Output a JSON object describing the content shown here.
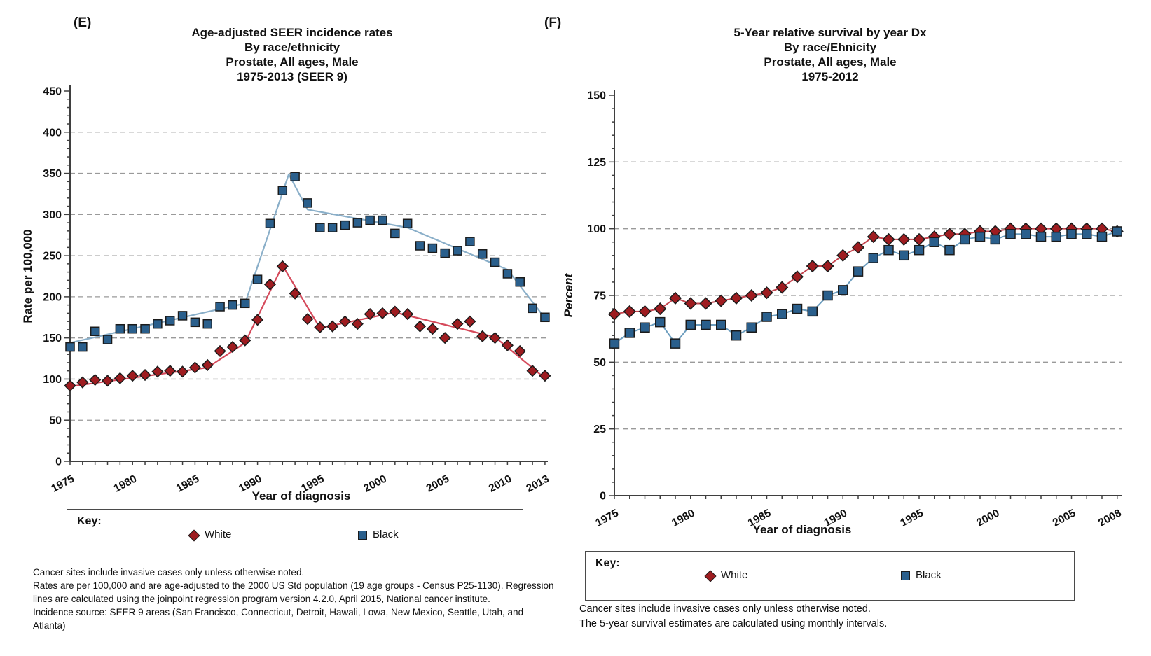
{
  "panel_e": {
    "tag": "(E)",
    "title": "Age-adjusted SEER incidence rates\nBy race/ethnicity\nProstate, All ages, Male\n1975-2013 (SEER 9)",
    "legend": {
      "key_label": "Key:",
      "entries": [
        {
          "label": "White",
          "marker": "diamond",
          "color": "#9E1C20"
        },
        {
          "label": "Black",
          "marker": "square",
          "color": "#2A5F8C"
        }
      ]
    },
    "footnotes": [
      "Cancer sites include invasive cases only unless otherwise noted.",
      "Rates are per 100,000 and are age-adjusted to the 2000 US Std population (19 age groups - Census P25-1130). Regression lines are calculated using the joinpoint regression program version 4.2.0, April 2015, National cancer institute.",
      "Incidence source: SEER 9 areas (San Francisco, Connecticut, Detroit, Hawali, Lowa, New Mexico, Seattle, Utah, and Atlanta)"
    ]
  },
  "panel_f": {
    "tag": "(F)",
    "title": "5-Year relative survival by year Dx\nBy race/Ehnicity\nProstate, All ages, Male\n1975-2012",
    "legend": {
      "key_label": "Key:",
      "entries": [
        {
          "label": "White",
          "marker": "diamond",
          "color": "#9E1C20"
        },
        {
          "label": "Black",
          "marker": "square",
          "color": "#2A5F8C"
        }
      ]
    },
    "footnotes": [
      "Cancer sites include invasive cases only unless otherwise noted.",
      "The 5-year survival estimates are calculated using monthly intervals."
    ]
  },
  "chart_data": [
    {
      "id": "E",
      "type": "scatter",
      "title": "Age-adjusted SEER incidence rates, By race/ethnicity, Prostate, All ages, Male, 1975-2013 (SEER 9)",
      "xlabel": "Year of diagnosis",
      "ylabel": "Rate per 100,000",
      "xlim": [
        1975,
        2013
      ],
      "ylim": [
        0,
        450
      ],
      "yticks": [
        0,
        50,
        100,
        150,
        200,
        250,
        300,
        350,
        400,
        450
      ],
      "xticks": [
        1975,
        1980,
        1985,
        1990,
        1995,
        2000,
        2005,
        2010,
        2013
      ],
      "grid": "dashed-horizontal",
      "legend_position": "below",
      "connect": false,
      "x": [
        1975,
        1976,
        1977,
        1978,
        1979,
        1980,
        1981,
        1982,
        1983,
        1984,
        1985,
        1986,
        1987,
        1988,
        1989,
        1990,
        1991,
        1992,
        1993,
        1994,
        1995,
        1996,
        1997,
        1998,
        1999,
        2000,
        2001,
        2002,
        2003,
        2004,
        2005,
        2006,
        2007,
        2008,
        2009,
        2010,
        2011,
        2012,
        2013
      ],
      "series": [
        {
          "name": "White",
          "marker": "diamond",
          "marker_color": "#9E1C20",
          "line_color": "#D5495A",
          "values": [
            92,
            96,
            99,
            98,
            101,
            104,
            105,
            109,
            110,
            109,
            114,
            117,
            134,
            139,
            147,
            172,
            215,
            237,
            204,
            173,
            163,
            164,
            170,
            167,
            179,
            180,
            182,
            179,
            164,
            161,
            150,
            167,
            170,
            152,
            150,
            141,
            134,
            110,
            104
          ],
          "trend": [
            [
              1975,
              91
            ],
            [
              1986,
              114
            ],
            [
              1989,
              144
            ],
            [
              1992,
              238
            ],
            [
              1995,
              162
            ],
            [
              2001,
              181
            ],
            [
              2009,
              151
            ],
            [
              2013,
              101
            ]
          ]
        },
        {
          "name": "Black",
          "marker": "square",
          "marker_color": "#2A5F8C",
          "line_color": "#8AAFC9",
          "values": [
            139,
            139,
            158,
            148,
            161,
            161,
            161,
            167,
            171,
            177,
            169,
            167,
            188,
            190,
            192,
            221,
            289,
            329,
            346,
            314,
            284,
            284,
            287,
            290,
            293,
            293,
            277,
            289,
            262,
            259,
            253,
            256,
            267,
            252,
            242,
            228,
            218,
            186,
            175
          ],
          "trend": [
            [
              1975,
              144
            ],
            [
              1989,
              192
            ],
            [
              1992.5,
              349
            ],
            [
              1994,
              306
            ],
            [
              2002,
              284
            ],
            [
              2010,
              233
            ],
            [
              2013,
              174
            ]
          ]
        }
      ]
    },
    {
      "id": "F",
      "type": "line",
      "title": "5-Year relative survival by year Dx, By race/Ehnicity, Prostate, All ages, Male, 1975-2012",
      "xlabel": "Year of diagnosis",
      "ylabel": "Percent",
      "xlim": [
        1975,
        2008
      ],
      "ylim": [
        0,
        150
      ],
      "yticks": [
        0,
        25,
        50,
        75,
        100,
        125,
        150
      ],
      "xticks": [
        1975,
        1980,
        1985,
        1990,
        1995,
        2000,
        2005,
        2008
      ],
      "grid": "dashed-horizontal",
      "legend_position": "below",
      "connect": true,
      "x": [
        1975,
        1976,
        1977,
        1978,
        1979,
        1980,
        1981,
        1982,
        1983,
        1984,
        1985,
        1986,
        1987,
        1988,
        1989,
        1990,
        1991,
        1992,
        1993,
        1994,
        1995,
        1996,
        1997,
        1998,
        1999,
        2000,
        2001,
        2002,
        2003,
        2004,
        2005,
        2006,
        2007,
        2008
      ],
      "series": [
        {
          "name": "White",
          "marker": "diamond",
          "marker_color": "#9E1C20",
          "line_color": "#C4454F",
          "values": [
            68,
            69,
            69,
            70,
            74,
            72,
            72,
            73,
            74,
            75,
            76,
            78,
            82,
            86,
            86,
            90,
            93,
            97,
            96,
            96,
            96,
            97,
            98,
            98,
            99,
            99,
            100,
            100,
            100,
            100,
            100,
            100,
            100,
            99
          ]
        },
        {
          "name": "Black",
          "marker": "square",
          "marker_color": "#2A5F8C",
          "line_color": "#6C9DBE",
          "values": [
            57,
            61,
            63,
            65,
            57,
            64,
            64,
            64,
            60,
            63,
            67,
            68,
            70,
            69,
            75,
            77,
            84,
            89,
            92,
            90,
            92,
            95,
            92,
            96,
            97,
            96,
            98,
            98,
            97,
            97,
            98,
            98,
            97,
            99
          ]
        }
      ]
    }
  ]
}
